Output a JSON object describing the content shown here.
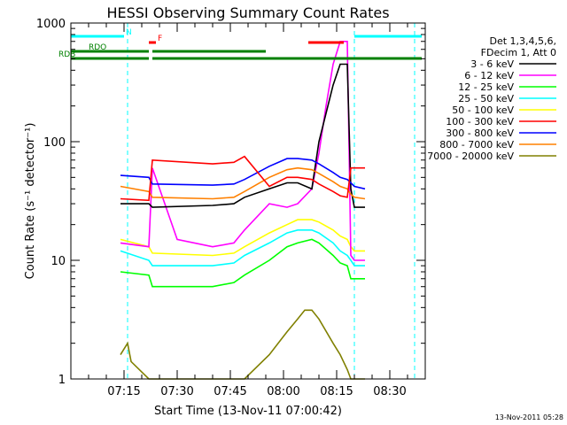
{
  "chart_data": {
    "type": "line",
    "title": "HESSI Observing Summary Count Rates",
    "xlabel": "Start Time (13-Nov-11 07:00:42)",
    "ylabel": "Count Rate (s⁻¹ detector⁻¹)",
    "y_scale": "log",
    "xlim": [
      "07:00",
      "08:40"
    ],
    "ylim": [
      1,
      1000
    ],
    "x_ticks": [
      "07:15",
      "07:30",
      "07:45",
      "08:00",
      "08:15",
      "08:30"
    ],
    "y_ticks": [
      "1",
      "10",
      "100",
      "1000"
    ],
    "legend_header": [
      "Det 1,3,4,5,6,",
      "FDecim 1, Att 0"
    ],
    "legend_position": "right",
    "series": [
      {
        "name": "3 - 6 keV",
        "color": "#000000",
        "x": [
          "07:14",
          "07:22",
          "07:23",
          "07:40",
          "07:46",
          "07:49",
          "07:56",
          "08:01",
          "08:04",
          "08:08",
          "08:10",
          "08:14",
          "08:16",
          "08:18",
          "08:19",
          "08:20",
          "08:23"
        ],
        "y": [
          30,
          30,
          28,
          29,
          30,
          34,
          40,
          45,
          45,
          40,
          100,
          300,
          450,
          450,
          40,
          28,
          28
        ]
      },
      {
        "name": "6 - 12 keV",
        "color": "#ff00ff",
        "x": [
          "07:14",
          "07:22",
          "07:23",
          "07:30",
          "07:40",
          "07:46",
          "07:49",
          "07:56",
          "08:01",
          "08:04",
          "08:08",
          "08:10",
          "08:12",
          "08:14",
          "08:16",
          "08:18",
          "08:19",
          "08:20",
          "08:23"
        ],
        "y": [
          14,
          13,
          60,
          15,
          13,
          14,
          18,
          30,
          28,
          30,
          40,
          80,
          200,
          450,
          700,
          700,
          11,
          10,
          10
        ]
      },
      {
        "name": "12 - 25 keV",
        "color": "#00ff00",
        "x": [
          "07:14",
          "07:22",
          "07:23",
          "07:40",
          "07:46",
          "07:49",
          "07:56",
          "08:01",
          "08:04",
          "08:08",
          "08:10",
          "08:14",
          "08:16",
          "08:18",
          "08:19",
          "08:20",
          "08:23"
        ],
        "y": [
          8,
          7.5,
          6,
          6,
          6.5,
          7.5,
          10,
          13,
          14,
          15,
          14,
          11,
          9.5,
          9,
          7,
          7,
          7
        ]
      },
      {
        "name": "25 - 50 keV",
        "color": "#00ffff",
        "x": [
          "07:14",
          "07:22",
          "07:23",
          "07:40",
          "07:46",
          "07:49",
          "07:56",
          "08:01",
          "08:04",
          "08:08",
          "08:10",
          "08:14",
          "08:16",
          "08:18",
          "08:19",
          "08:20",
          "08:23"
        ],
        "y": [
          12,
          10,
          9,
          9,
          9.5,
          11,
          14,
          17,
          18,
          18,
          17,
          14,
          12,
          11,
          10,
          9,
          9
        ]
      },
      {
        "name": "50 - 100 keV",
        "color": "#ffff00",
        "x": [
          "07:14",
          "07:22",
          "07:23",
          "07:40",
          "07:46",
          "07:49",
          "07:56",
          "08:01",
          "08:04",
          "08:08",
          "08:10",
          "08:14",
          "08:16",
          "08:18",
          "08:19",
          "08:20",
          "08:23"
        ],
        "y": [
          15,
          13,
          11.5,
          11,
          11.5,
          13,
          17,
          20,
          22,
          22,
          21,
          18,
          16,
          15,
          13,
          12,
          12
        ]
      },
      {
        "name": "100 - 300 keV",
        "color": "#ff0000",
        "x": [
          "07:14",
          "07:22",
          "07:23",
          "07:40",
          "07:46",
          "07:49",
          "07:56",
          "08:01",
          "08:04",
          "08:08",
          "08:10",
          "08:14",
          "08:16",
          "08:18",
          "08:19",
          "08:20",
          "08:23"
        ],
        "y": [
          33,
          32,
          70,
          65,
          67,
          75,
          42,
          50,
          50,
          48,
          44,
          38,
          35,
          34,
          60,
          60,
          60
        ]
      },
      {
        "name": "300 - 800 keV",
        "color": "#0000ff",
        "x": [
          "07:14",
          "07:22",
          "07:23",
          "07:40",
          "07:46",
          "07:49",
          "07:56",
          "08:01",
          "08:04",
          "08:08",
          "08:10",
          "08:14",
          "08:16",
          "08:18",
          "08:19",
          "08:20",
          "08:23"
        ],
        "y": [
          52,
          50,
          44,
          43,
          44,
          48,
          62,
          72,
          72,
          70,
          65,
          55,
          50,
          48,
          45,
          42,
          40
        ]
      },
      {
        "name": "800 - 7000 keV",
        "color": "#ff8000",
        "x": [
          "07:14",
          "07:22",
          "07:23",
          "07:40",
          "07:46",
          "07:49",
          "07:56",
          "08:01",
          "08:04",
          "08:08",
          "08:10",
          "08:14",
          "08:16",
          "08:18",
          "08:19",
          "08:20",
          "08:23"
        ],
        "y": [
          42,
          38,
          34,
          33,
          34,
          38,
          50,
          58,
          60,
          58,
          54,
          46,
          42,
          40,
          36,
          34,
          33
        ]
      },
      {
        "name": "7000 - 20000 keV",
        "color": "#808000",
        "x": [
          "07:14",
          "07:16",
          "07:17",
          "07:22",
          "07:23",
          "07:42",
          "07:46",
          "07:49",
          "07:56",
          "08:01",
          "08:04",
          "08:06",
          "08:08",
          "08:10",
          "08:14",
          "08:16",
          "08:18",
          "08:19",
          "08:23"
        ],
        "y": [
          1.6,
          2,
          1.4,
          1,
          1,
          1,
          1,
          1,
          1.6,
          2.5,
          3.2,
          3.8,
          3.8,
          3.2,
          2,
          1.6,
          1.2,
          1,
          1
        ]
      }
    ],
    "flags": [
      {
        "label": "N",
        "color": "#00ffff",
        "segments": [
          [
            "07:00",
            "07:15"
          ],
          [
            "08:20",
            "08:39"
          ]
        ]
      },
      {
        "label": "F",
        "color": "#ff0000",
        "segments": [
          [
            "07:22",
            "07:24"
          ],
          [
            "08:07",
            "08:17"
          ]
        ]
      },
      {
        "label": "RDO",
        "color": "#008000",
        "segments": [
          [
            "07:00",
            "07:22"
          ],
          [
            "07:23",
            "07:55"
          ]
        ]
      },
      {
        "label": "RDB",
        "color": "#008000",
        "segments": [
          [
            "07:00",
            "07:22"
          ],
          [
            "07:23",
            "07:55"
          ],
          [
            "07:55",
            "08:39"
          ]
        ]
      }
    ],
    "vertical_markers": [
      "07:16",
      "08:20",
      "08:37"
    ],
    "grid": false
  },
  "footer": {
    "timestamp": "13-Nov-2011 05:28"
  }
}
